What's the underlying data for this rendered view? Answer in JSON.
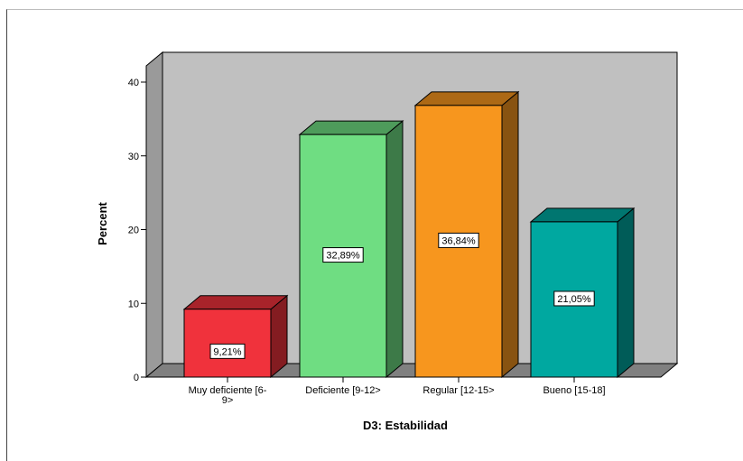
{
  "chart_data": {
    "type": "bar",
    "style": "3d",
    "title": "",
    "xlabel": "D3: Estabilidad",
    "ylabel": "Percent",
    "ylim": [
      0,
      40
    ],
    "yticks": [
      "0",
      "10",
      "20",
      "30",
      "40"
    ],
    "categories": [
      [
        "Muy deficiente [6-",
        "9>"
      ],
      [
        "Deficiente [9-12>"
      ],
      [
        "Regular [12-15>"
      ],
      [
        "Bueno [15-18]"
      ]
    ],
    "values": [
      9.21,
      32.89,
      36.84,
      21.05
    ],
    "data_labels": [
      "9,21%",
      "32,89%",
      "36,84%",
      "21,05%"
    ],
    "colors": [
      "#f0323c",
      "#6fdd82",
      "#f7961e",
      "#00a8a0"
    ],
    "back_wall_color": "#c0c0c0",
    "floor_color": "#808080",
    "grid": false,
    "legend": "none"
  }
}
